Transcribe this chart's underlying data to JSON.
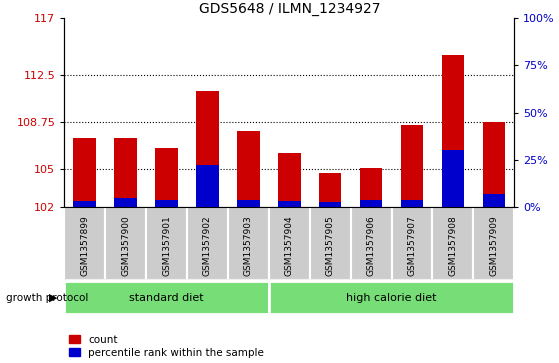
{
  "title": "GDS5648 / ILMN_1234927",
  "samples": [
    "GSM1357899",
    "GSM1357900",
    "GSM1357901",
    "GSM1357902",
    "GSM1357903",
    "GSM1357904",
    "GSM1357905",
    "GSM1357906",
    "GSM1357907",
    "GSM1357908",
    "GSM1357909"
  ],
  "count_values": [
    107.5,
    107.5,
    106.7,
    111.2,
    108.0,
    106.3,
    104.7,
    105.1,
    108.5,
    114.1,
    108.75
  ],
  "percentile_values": [
    3.0,
    4.5,
    3.5,
    22.0,
    3.5,
    3.0,
    2.5,
    3.5,
    3.5,
    30.0,
    7.0
  ],
  "y_min": 102,
  "y_max": 117,
  "y_ticks": [
    102,
    105,
    108.75,
    112.5,
    117
  ],
  "right_y_ticks": [
    0,
    25,
    50,
    75,
    100
  ],
  "right_y_tick_labels": [
    "0%",
    "25%",
    "50%",
    "75%",
    "100%"
  ],
  "bar_color_red": "#cc0000",
  "bar_color_blue": "#0000cc",
  "bg_plot": "#ffffff",
  "bg_xticklabels": "#cccccc",
  "bg_group_green": "#77dd77",
  "standard_diet_samples": 5,
  "high_calorie_samples": 6,
  "group_label_standard": "standard diet",
  "group_label_high": "high calorie diet",
  "growth_protocol_label": "growth protocol",
  "legend_count": "count",
  "legend_percentile": "percentile rank within the sample",
  "title_color": "#000000",
  "left_axis_color": "#cc0000",
  "right_axis_color": "#0000cc",
  "bar_width": 0.55,
  "dotted_lines": [
    105,
    108.75,
    112.5
  ]
}
